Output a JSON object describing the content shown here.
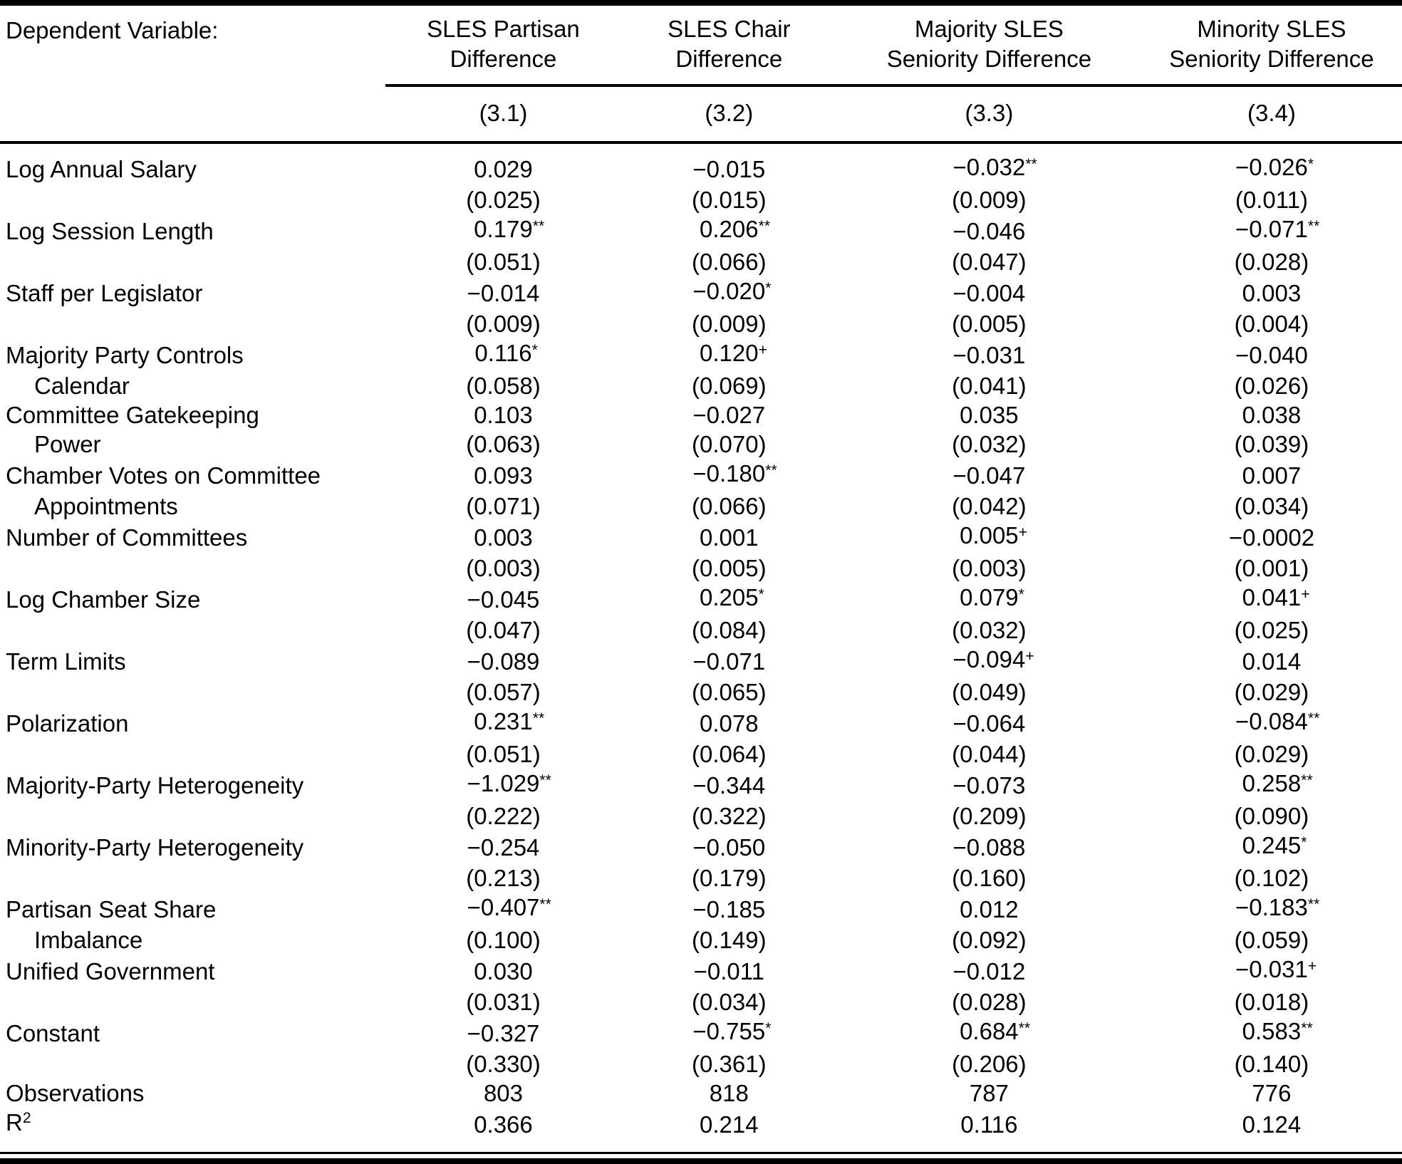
{
  "colors": {
    "text": "#000000",
    "background": "#ffffff",
    "rule": "#000000"
  },
  "header": {
    "dependent_variable_label": "Dependent Variable:",
    "columns": [
      {
        "line1": "SLES Partisan",
        "line2": "Difference",
        "number": "(3.1)"
      },
      {
        "line1": "SLES Chair",
        "line2": "Difference",
        "number": "(3.2)"
      },
      {
        "line1": "Majority SLES",
        "line2": "Seniority Difference",
        "number": "(3.3)"
      },
      {
        "line1": "Minority SLES",
        "line2": "Seniority Difference",
        "number": "(3.4)"
      }
    ]
  },
  "rows": [
    {
      "label": "Log Annual Salary",
      "label2": "",
      "cells": [
        {
          "est": "0.029",
          "sup": "",
          "se": "(0.025)"
        },
        {
          "est": "−0.015",
          "sup": "",
          "se": "(0.015)"
        },
        {
          "est": "−0.032",
          "sup": "**",
          "se": "(0.009)"
        },
        {
          "est": "−0.026",
          "sup": "*",
          "se": "(0.011)"
        }
      ]
    },
    {
      "label": "Log Session Length",
      "label2": "",
      "cells": [
        {
          "est": "0.179",
          "sup": "**",
          "se": "(0.051)"
        },
        {
          "est": "0.206",
          "sup": "**",
          "se": "(0.066)"
        },
        {
          "est": "−0.046",
          "sup": "",
          "se": "(0.047)"
        },
        {
          "est": "−0.071",
          "sup": "**",
          "se": "(0.028)"
        }
      ]
    },
    {
      "label": "Staff per Legislator",
      "label2": "",
      "cells": [
        {
          "est": "−0.014",
          "sup": "",
          "se": "(0.009)"
        },
        {
          "est": "−0.020",
          "sup": "*",
          "se": "(0.009)"
        },
        {
          "est": "−0.004",
          "sup": "",
          "se": "(0.005)"
        },
        {
          "est": "0.003",
          "sup": "",
          "se": "(0.004)"
        }
      ]
    },
    {
      "label": "Majority Party Controls",
      "label2": "Calendar",
      "cells": [
        {
          "est": "0.116",
          "sup": "*",
          "se": "(0.058)"
        },
        {
          "est": "0.120",
          "sup": "+",
          "se": "(0.069)"
        },
        {
          "est": "−0.031",
          "sup": "",
          "se": "(0.041)"
        },
        {
          "est": "−0.040",
          "sup": "",
          "se": "(0.026)"
        }
      ]
    },
    {
      "label": "Committee Gatekeeping",
      "label2": "Power",
      "cells": [
        {
          "est": "0.103",
          "sup": "",
          "se": "(0.063)"
        },
        {
          "est": "−0.027",
          "sup": "",
          "se": "(0.070)"
        },
        {
          "est": "0.035",
          "sup": "",
          "se": "(0.032)"
        },
        {
          "est": "0.038",
          "sup": "",
          "se": "(0.039)"
        }
      ]
    },
    {
      "label": "Chamber Votes on Committee",
      "label2": "Appointments",
      "cells": [
        {
          "est": "0.093",
          "sup": "",
          "se": "(0.071)"
        },
        {
          "est": "−0.180",
          "sup": "**",
          "se": "(0.066)"
        },
        {
          "est": "−0.047",
          "sup": "",
          "se": "(0.042)"
        },
        {
          "est": "0.007",
          "sup": "",
          "se": "(0.034)"
        }
      ]
    },
    {
      "label": "Number of Committees",
      "label2": "",
      "cells": [
        {
          "est": "0.003",
          "sup": "",
          "se": "(0.003)"
        },
        {
          "est": "0.001",
          "sup": "",
          "se": "(0.005)"
        },
        {
          "est": "0.005",
          "sup": "+",
          "se": "(0.003)"
        },
        {
          "est": "−0.0002",
          "sup": "",
          "se": "(0.001)"
        }
      ]
    },
    {
      "label": "Log Chamber Size",
      "label2": "",
      "cells": [
        {
          "est": "−0.045",
          "sup": "",
          "se": "(0.047)"
        },
        {
          "est": "0.205",
          "sup": "*",
          "se": "(0.084)"
        },
        {
          "est": "0.079",
          "sup": "*",
          "se": "(0.032)"
        },
        {
          "est": "0.041",
          "sup": "+",
          "se": "(0.025)"
        }
      ]
    },
    {
      "label": "Term Limits",
      "label2": "",
      "cells": [
        {
          "est": "−0.089",
          "sup": "",
          "se": "(0.057)"
        },
        {
          "est": "−0.071",
          "sup": "",
          "se": "(0.065)"
        },
        {
          "est": "−0.094",
          "sup": "+",
          "se": "(0.049)"
        },
        {
          "est": "0.014",
          "sup": "",
          "se": "(0.029)"
        }
      ]
    },
    {
      "label": "Polarization",
      "label2": "",
      "cells": [
        {
          "est": "0.231",
          "sup": "**",
          "se": "(0.051)"
        },
        {
          "est": "0.078",
          "sup": "",
          "se": "(0.064)"
        },
        {
          "est": "−0.064",
          "sup": "",
          "se": "(0.044)"
        },
        {
          "est": "−0.084",
          "sup": "**",
          "se": "(0.029)"
        }
      ]
    },
    {
      "label": "Majority-Party Heterogeneity",
      "label2": "",
      "cells": [
        {
          "est": "−1.029",
          "sup": "**",
          "se": "(0.222)"
        },
        {
          "est": "−0.344",
          "sup": "",
          "se": "(0.322)"
        },
        {
          "est": "−0.073",
          "sup": "",
          "se": "(0.209)"
        },
        {
          "est": "0.258",
          "sup": "**",
          "se": "(0.090)"
        }
      ]
    },
    {
      "label": "Minority-Party Heterogeneity",
      "label2": "",
      "cells": [
        {
          "est": "−0.254",
          "sup": "",
          "se": "(0.213)"
        },
        {
          "est": "−0.050",
          "sup": "",
          "se": "(0.179)"
        },
        {
          "est": "−0.088",
          "sup": "",
          "se": "(0.160)"
        },
        {
          "est": "0.245",
          "sup": "*",
          "se": "(0.102)"
        }
      ]
    },
    {
      "label": "Partisan Seat Share",
      "label2": "Imbalance",
      "cells": [
        {
          "est": "−0.407",
          "sup": "**",
          "se": "(0.100)"
        },
        {
          "est": "−0.185",
          "sup": "",
          "se": "(0.149)"
        },
        {
          "est": "0.012",
          "sup": "",
          "se": "(0.092)"
        },
        {
          "est": "−0.183",
          "sup": "**",
          "se": "(0.059)"
        }
      ]
    },
    {
      "label": "Unified Government",
      "label2": "",
      "cells": [
        {
          "est": "0.030",
          "sup": "",
          "se": "(0.031)"
        },
        {
          "est": "−0.011",
          "sup": "",
          "se": "(0.034)"
        },
        {
          "est": "−0.012",
          "sup": "",
          "se": "(0.028)"
        },
        {
          "est": "−0.031",
          "sup": "+",
          "se": "(0.018)"
        }
      ]
    },
    {
      "label": "Constant",
      "label2": "",
      "cells": [
        {
          "est": "−0.327",
          "sup": "",
          "se": "(0.330)"
        },
        {
          "est": "−0.755",
          "sup": "*",
          "se": "(0.361)"
        },
        {
          "est": "0.684",
          "sup": "**",
          "se": "(0.206)"
        },
        {
          "est": "0.583",
          "sup": "**",
          "se": "(0.140)"
        }
      ]
    }
  ],
  "stats": [
    {
      "label": "Observations",
      "label_sup": "",
      "values": [
        "803",
        "818",
        "787",
        "776"
      ]
    },
    {
      "label": "R",
      "label_sup": "2",
      "values": [
        "0.366",
        "0.214",
        "0.116",
        "0.124"
      ]
    }
  ]
}
